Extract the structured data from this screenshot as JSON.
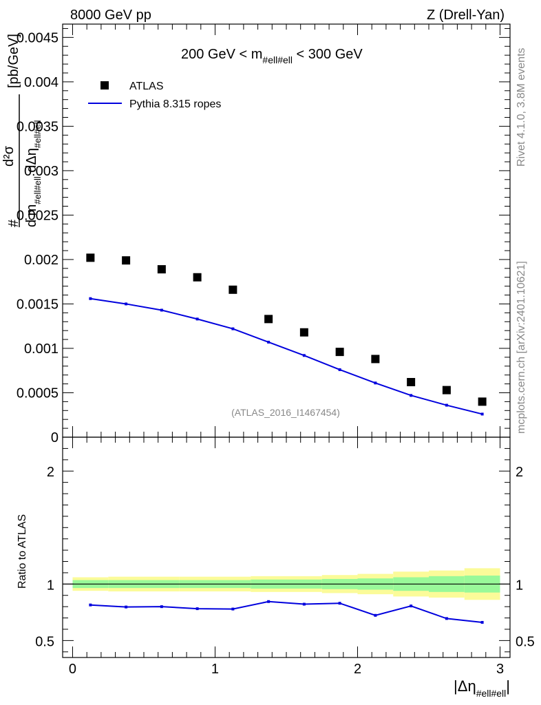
{
  "header": {
    "left": "8000 GeV pp",
    "right": "Z (Drell-Yan)"
  },
  "side_labels": {
    "rivet": "Rivet 4.1.0,  3.8M events",
    "mcplots": "mcplots.cern.ch [arXiv:2401.10621]"
  },
  "chart_data": [
    {
      "type": "scatter",
      "panel": "main",
      "title_pre": "200 GeV < m",
      "title_sub": "#ell#ell",
      "title_post": " < 300 GeV",
      "ylabel_parts": {
        "num": "d²σ",
        "den_pre": "d m",
        "den_sub": "#ell#ell",
        "den_mid": " dΔη",
        "den_sub2": "#ell#ell",
        "prefix": "#",
        "unit": "[pb/GeV]"
      },
      "ylim": [
        0,
        0.00465
      ],
      "xlim": [
        -0.07,
        3.07
      ],
      "yticks": [
        0,
        0.0005,
        0.001,
        0.0015,
        0.002,
        0.0025,
        0.003,
        0.0035,
        0.004,
        0.0045
      ],
      "ytick_labels": [
        "0",
        "0.0005",
        "0.001",
        "0.0015",
        "0.002",
        "0.0025",
        "0.003",
        "0.0035",
        "0.004",
        "0.0045"
      ],
      "watermark": "(ATLAS_2016_I1467454)",
      "legend_position": "top-left",
      "series": [
        {
          "name": "ATLAS",
          "style": "markers",
          "color": "#000000",
          "x": [
            0.125,
            0.375,
            0.625,
            0.875,
            1.125,
            1.375,
            1.625,
            1.875,
            2.125,
            2.375,
            2.625,
            2.875
          ],
          "values": [
            0.00202,
            0.00199,
            0.00189,
            0.0018,
            0.00166,
            0.00133,
            0.00118,
            0.00096,
            0.00088,
            0.00062,
            0.00053,
            0.0004
          ]
        },
        {
          "name": "Pythia 8.315 ropes",
          "style": "line",
          "color": "#0000dd",
          "x": [
            0.125,
            0.375,
            0.625,
            0.875,
            1.125,
            1.375,
            1.625,
            1.875,
            2.125,
            2.375,
            2.625,
            2.875
          ],
          "values": [
            0.00156,
            0.0015,
            0.00143,
            0.00133,
            0.00122,
            0.00107,
            0.00092,
            0.00076,
            0.00061,
            0.00047,
            0.00036,
            0.00026
          ]
        }
      ]
    },
    {
      "type": "line",
      "panel": "ratio",
      "ylabel": "Ratio to ATLAS",
      "xlabel_main": "|Δη",
      "xlabel_sub": "#ell#ell",
      "xlabel_end": "|",
      "ylim": [
        0.35,
        2.3
      ],
      "xlim": [
        -0.07,
        3.07
      ],
      "yticks": [
        0.5,
        1,
        2
      ],
      "ytick_labels": [
        "0.5",
        "1",
        "2"
      ],
      "xticks": [
        0,
        1,
        2,
        3
      ],
      "xtick_labels": [
        "0",
        "1",
        "2",
        "3"
      ],
      "bins": [
        0,
        0.25,
        0.5,
        0.75,
        1.0,
        1.25,
        1.5,
        1.75,
        2.0,
        2.25,
        2.5,
        2.75,
        3.0
      ],
      "band_stat_halfwidth": [
        0.035,
        0.035,
        0.035,
        0.035,
        0.035,
        0.04,
        0.04,
        0.045,
        0.05,
        0.06,
        0.07,
        0.075
      ],
      "band_total_halfwidth": [
        0.06,
        0.065,
        0.065,
        0.065,
        0.065,
        0.07,
        0.07,
        0.08,
        0.09,
        0.11,
        0.12,
        0.14
      ],
      "band_colors": {
        "stat": "#99f999",
        "total": "#fbfb99"
      },
      "series": [
        {
          "name": "Pythia 8.315 ropes / ATLAS",
          "color": "#0000dd",
          "x": [
            0.125,
            0.375,
            0.625,
            0.875,
            1.125,
            1.375,
            1.625,
            1.875,
            2.125,
            2.375,
            2.625,
            2.875
          ],
          "values": [
            0.815,
            0.797,
            0.8,
            0.782,
            0.779,
            0.845,
            0.822,
            0.83,
            0.723,
            0.806,
            0.695,
            0.661
          ]
        }
      ]
    }
  ]
}
